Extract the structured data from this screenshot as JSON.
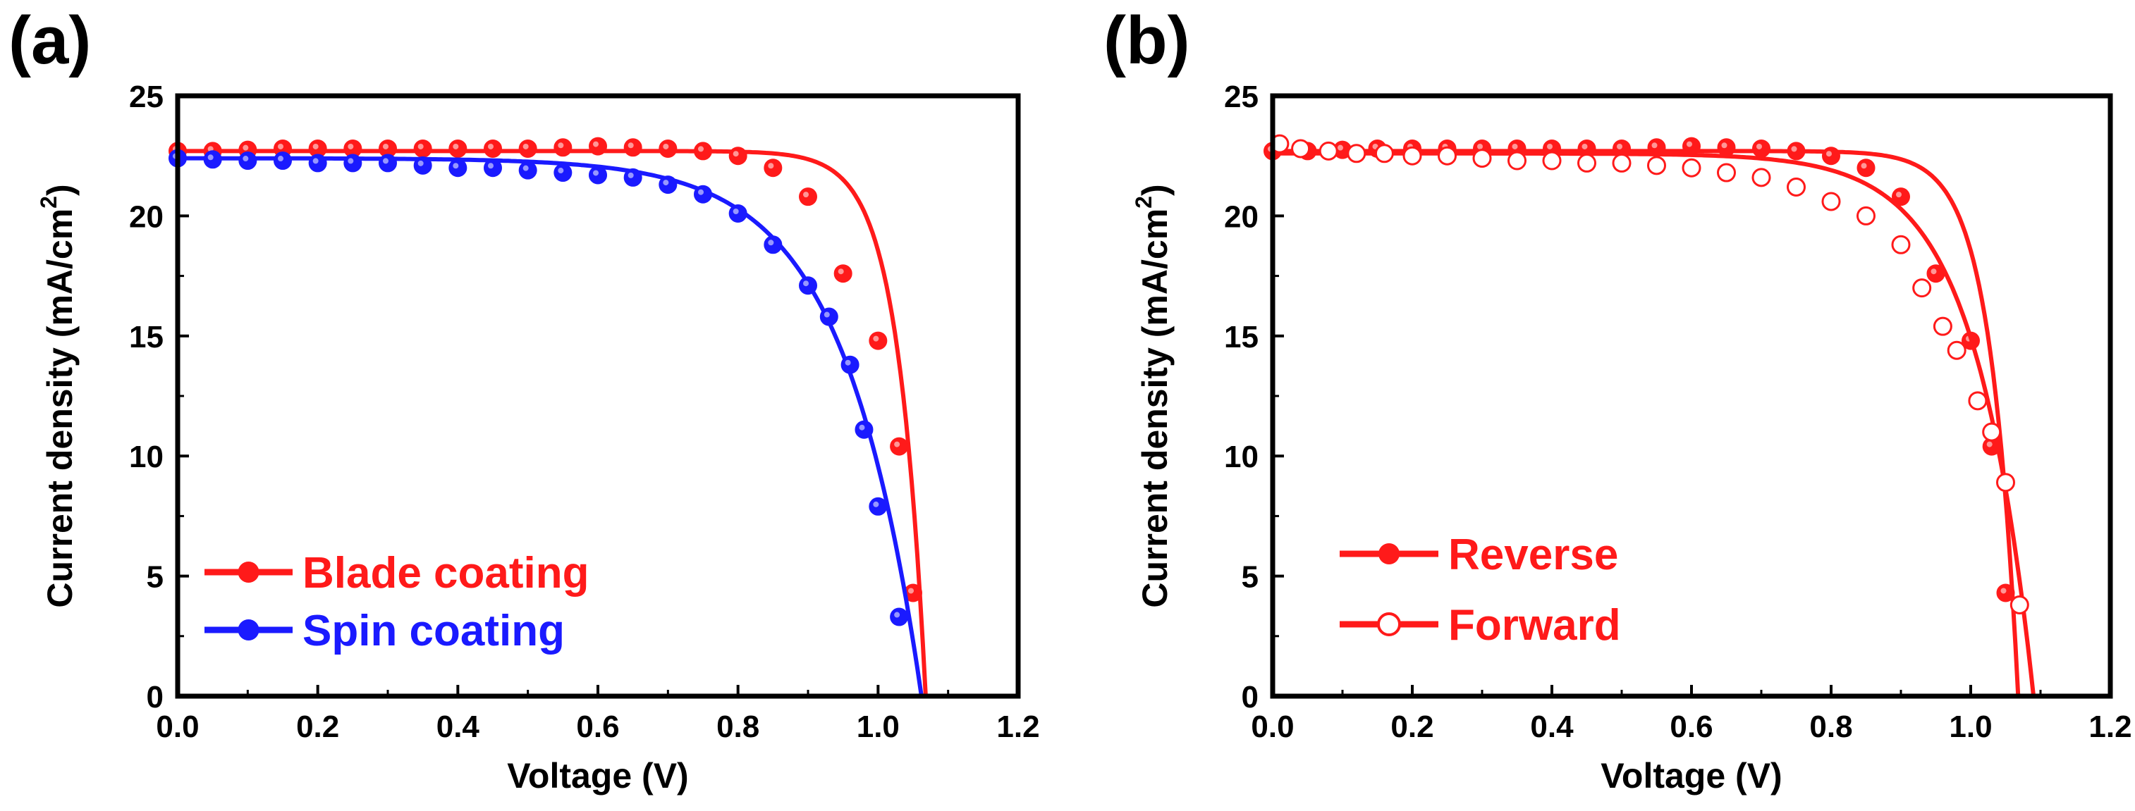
{
  "colors": {
    "red": "#ff1a1a",
    "blue": "#1a1aff",
    "axis": "#000000"
  },
  "chart_data": [
    {
      "panel_label": "(a)",
      "type": "line",
      "xlabel": "Voltage (V)",
      "ylabel": "Current density (mA/cm",
      "ylabel_sup": "2",
      "ylabel_close": ")",
      "xlim": [
        0,
        1.2
      ],
      "ylim": [
        0,
        25
      ],
      "xticks": [
        "0.0",
        "0.2",
        "0.4",
        "0.6",
        "0.8",
        "1.0",
        "1.2"
      ],
      "yticks": [
        "0",
        "5",
        "10",
        "15",
        "20",
        "25"
      ],
      "legend_location": "lower-left",
      "series": [
        {
          "name": "Blade coating",
          "color": "#ff1a1a",
          "marker": "filled",
          "jsc": 22.7,
          "voc": 1.068,
          "sat": 25,
          "x": [
            0,
            0.05,
            0.1,
            0.15,
            0.2,
            0.25,
            0.3,
            0.35,
            0.4,
            0.45,
            0.5,
            0.55,
            0.6,
            0.65,
            0.7,
            0.75,
            0.8,
            0.85,
            0.9,
            0.95,
            1.0,
            1.03,
            1.05
          ],
          "y": [
            22.7,
            22.7,
            22.75,
            22.8,
            22.8,
            22.8,
            22.8,
            22.8,
            22.8,
            22.8,
            22.8,
            22.85,
            22.9,
            22.85,
            22.8,
            22.7,
            22.5,
            22.0,
            20.8,
            17.6,
            14.8,
            10.4,
            4.3
          ]
        },
        {
          "name": "Spin coating",
          "color": "#1a1aff",
          "marker": "filled",
          "jsc": 22.4,
          "voc": 1.062,
          "sat": 9,
          "x": [
            0,
            0.05,
            0.1,
            0.15,
            0.2,
            0.25,
            0.3,
            0.35,
            0.4,
            0.45,
            0.5,
            0.55,
            0.6,
            0.65,
            0.7,
            0.75,
            0.8,
            0.85,
            0.9,
            0.93,
            0.96,
            0.98,
            1.0,
            1.03
          ],
          "y": [
            22.4,
            22.35,
            22.3,
            22.3,
            22.2,
            22.2,
            22.2,
            22.1,
            22.0,
            22.0,
            21.9,
            21.8,
            21.7,
            21.6,
            21.3,
            20.9,
            20.1,
            18.8,
            17.1,
            15.8,
            13.8,
            11.1,
            7.9,
            3.3
          ]
        }
      ]
    },
    {
      "panel_label": "(b)",
      "type": "line",
      "xlabel": "Voltage (V)",
      "ylabel": "Current density (mA/cm",
      "ylabel_sup": "2",
      "ylabel_close": ")",
      "xlim": [
        0,
        1.2
      ],
      "ylim": [
        0,
        25
      ],
      "xticks": [
        "0.0",
        "0.2",
        "0.4",
        "0.6",
        "0.8",
        "1.0",
        "1.2"
      ],
      "yticks": [
        "0",
        "5",
        "10",
        "15",
        "20",
        "25"
      ],
      "legend_location": "lower-left",
      "series": [
        {
          "name": "Reverse",
          "color": "#ff1a1a",
          "marker": "filled",
          "jsc": 22.7,
          "voc": 1.068,
          "sat": 25,
          "x": [
            0,
            0.05,
            0.1,
            0.15,
            0.2,
            0.25,
            0.3,
            0.35,
            0.4,
            0.45,
            0.5,
            0.55,
            0.6,
            0.65,
            0.7,
            0.75,
            0.8,
            0.85,
            0.9,
            0.95,
            1.0,
            1.03,
            1.05
          ],
          "y": [
            22.7,
            22.7,
            22.75,
            22.8,
            22.8,
            22.8,
            22.8,
            22.8,
            22.8,
            22.8,
            22.8,
            22.85,
            22.9,
            22.85,
            22.8,
            22.7,
            22.5,
            22.0,
            20.8,
            17.6,
            14.8,
            10.4,
            4.3
          ]
        },
        {
          "name": "Forward",
          "color": "#ff1a1a",
          "marker": "open",
          "jsc": 22.6,
          "voc": 1.09,
          "sat": 12,
          "x": [
            0.01,
            0.04,
            0.08,
            0.12,
            0.16,
            0.2,
            0.25,
            0.3,
            0.35,
            0.4,
            0.45,
            0.5,
            0.55,
            0.6,
            0.65,
            0.7,
            0.75,
            0.8,
            0.85,
            0.9,
            0.93,
            0.96,
            0.98,
            1.01,
            1.03,
            1.05,
            1.07
          ],
          "y": [
            23.0,
            22.8,
            22.7,
            22.6,
            22.6,
            22.5,
            22.5,
            22.4,
            22.3,
            22.3,
            22.2,
            22.2,
            22.1,
            22.0,
            21.8,
            21.6,
            21.2,
            20.6,
            20.0,
            18.8,
            17.0,
            15.4,
            14.4,
            12.3,
            11.0,
            8.9,
            3.8
          ]
        }
      ]
    }
  ]
}
